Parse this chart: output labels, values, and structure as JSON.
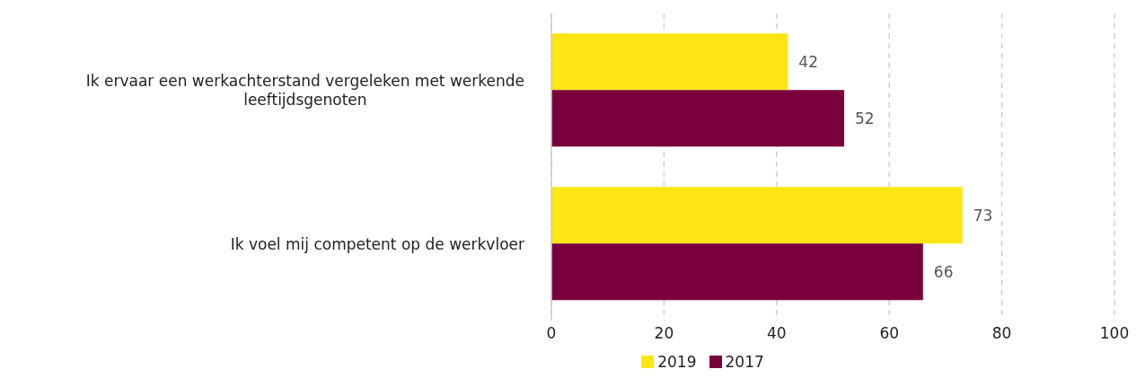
{
  "chart_data": {
    "type": "bar",
    "orientation": "horizontal",
    "categories": [
      "Ik ervaar een werkachterstand vergeleken met werkende leeftijdsgenoten",
      "Ik voel mij competent op de werkvloer"
    ],
    "series": [
      {
        "name": "2019",
        "color": "#ffe512",
        "values": [
          42,
          73
        ]
      },
      {
        "name": "2017",
        "color": "#7a003c",
        "values": [
          52,
          66
        ]
      }
    ],
    "xlim": [
      0,
      100
    ],
    "xticks": [
      0,
      20,
      40,
      60,
      80,
      100
    ],
    "grid": "x",
    "legend": "bottom",
    "data_labels": true
  }
}
